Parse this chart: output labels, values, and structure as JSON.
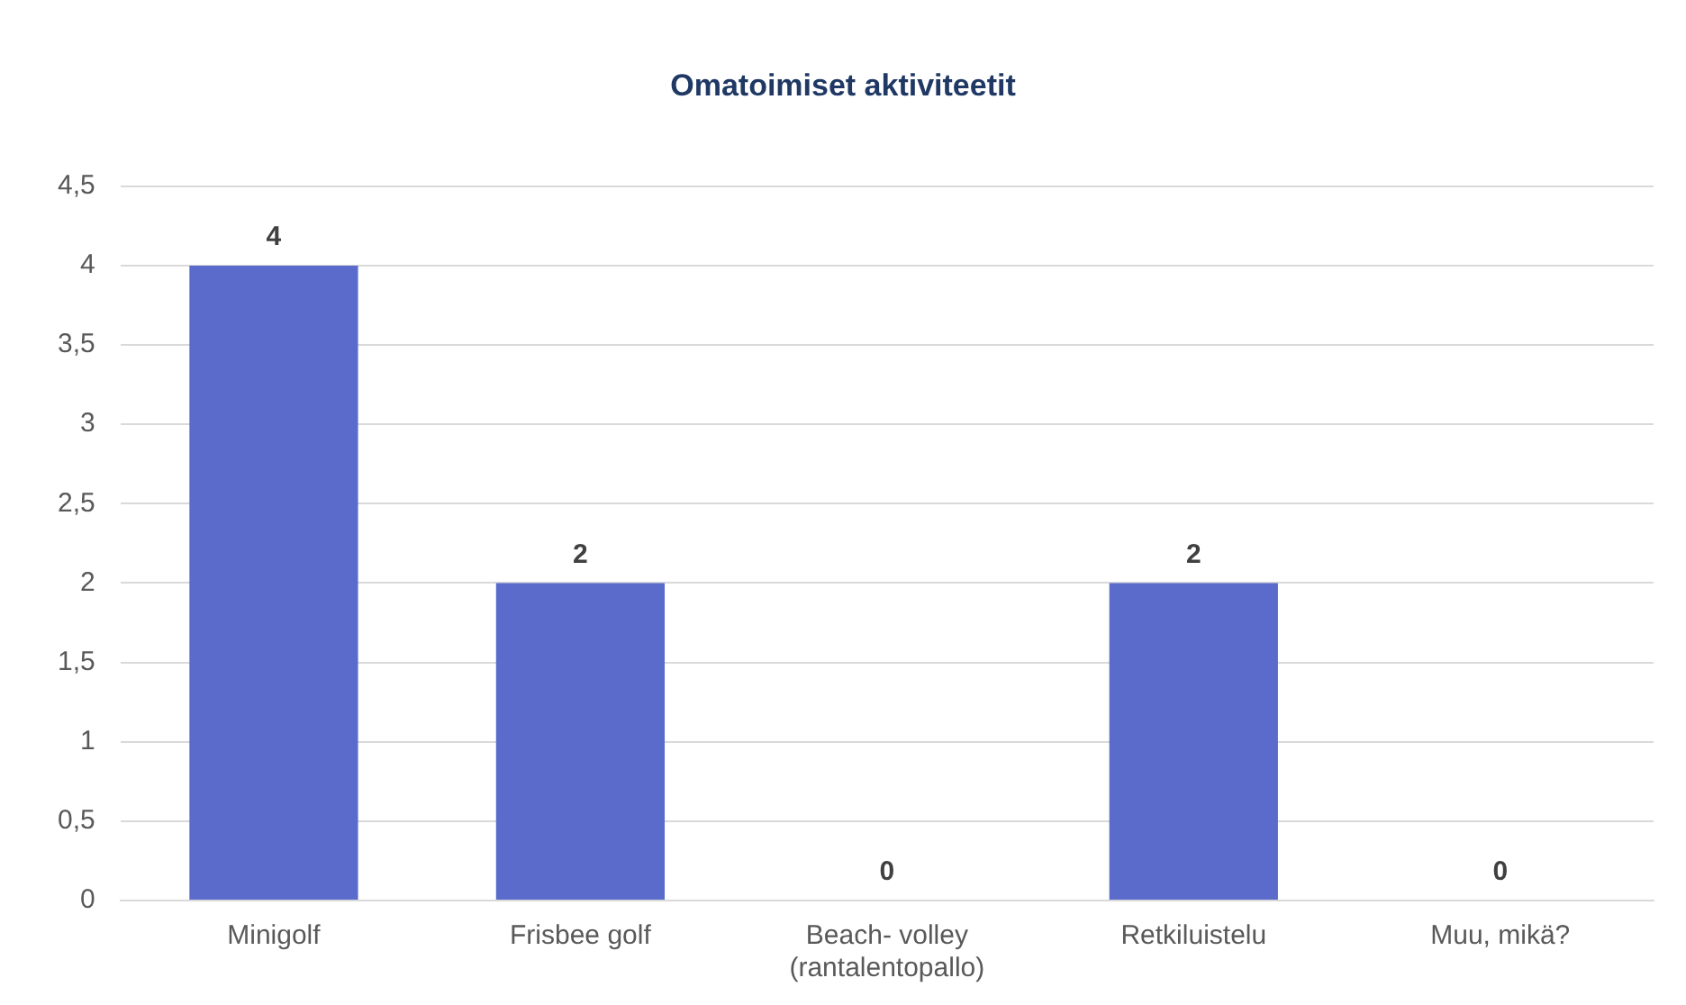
{
  "chart_data": {
    "type": "bar",
    "title": "Omatoimiset aktiviteetit",
    "categories": [
      "Minigolf",
      "Frisbee golf",
      "Beach- volley (rantalentopallo)",
      "Retkiluistelu",
      "Muu, mikä?"
    ],
    "values": [
      4,
      2,
      0,
      2,
      0
    ],
    "color": "#5a6bcb",
    "ylim": [
      0,
      4.5
    ],
    "yticks": [
      0,
      {
        "value": 0.5,
        "label": "0,5"
      },
      1,
      {
        "value": 1.5,
        "label": "1,5"
      },
      2,
      {
        "value": 2.5,
        "label": "2,5"
      },
      3,
      {
        "value": 3.5,
        "label": "3,5"
      },
      4,
      {
        "value": 4.5,
        "label": "4,5"
      }
    ],
    "grid": "y",
    "data_labels": true,
    "legend": false
  }
}
